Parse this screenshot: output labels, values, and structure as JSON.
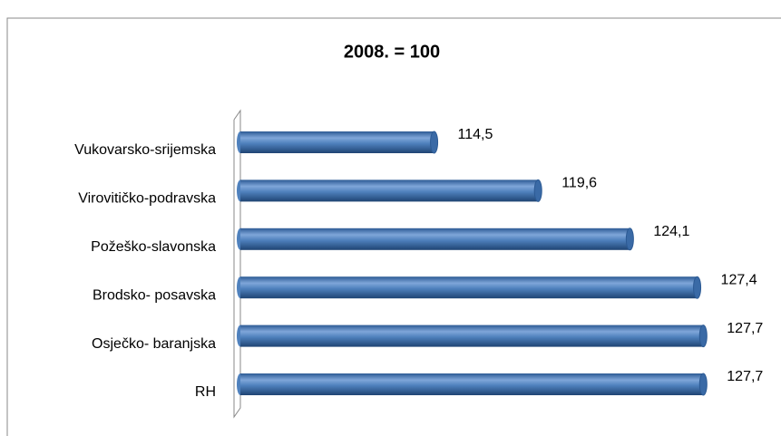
{
  "chart_data": {
    "type": "bar",
    "orientation": "horizontal",
    "title": "2008. = 100",
    "categories": [
      "Vukovarsko-srijemska",
      "Virovitičko-podravska",
      "Požeško-slavonska",
      "Brodsko- posavska",
      "Osječko- baranjska",
      "RH"
    ],
    "values": [
      114.5,
      119.6,
      124.1,
      127.4,
      127.7,
      127.7
    ],
    "value_labels": [
      "114,5",
      "119,6",
      "124,1",
      "127,4",
      "127,7",
      "127,7"
    ],
    "color": "#4f81bd",
    "xlim": [
      105,
      130
    ]
  }
}
